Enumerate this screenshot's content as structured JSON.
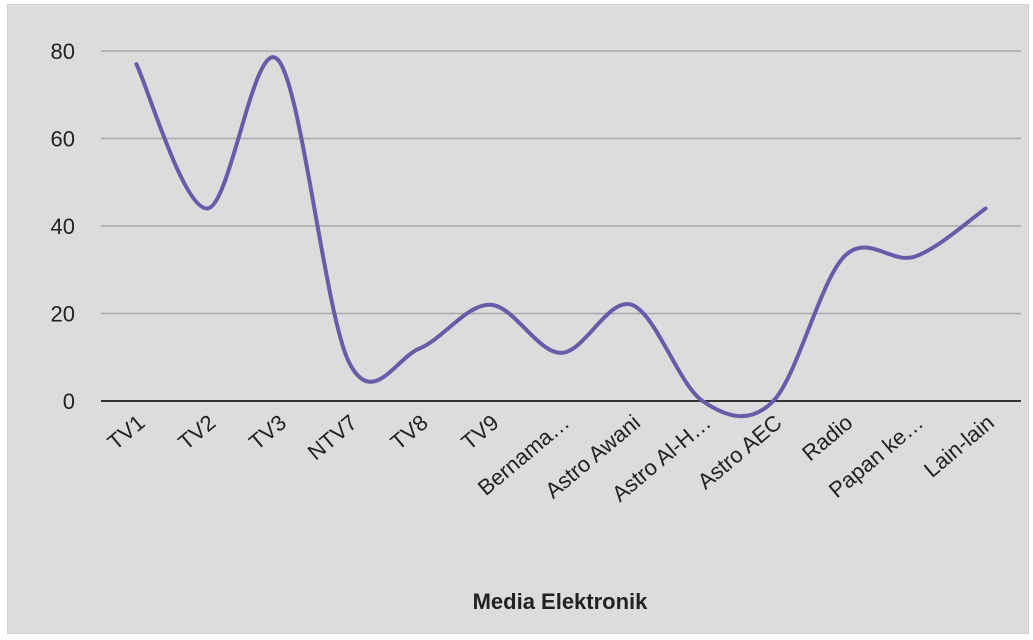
{
  "chart_data": {
    "type": "line",
    "xlabel": "Media Elektronik",
    "ylabel": "",
    "categories": [
      "TV1",
      "TV2",
      "TV3",
      "NTV7",
      "TV8",
      "TV9",
      "Bernama…",
      "Astro Awani",
      "Astro Al-H…",
      "Astro AEC",
      "Radio",
      "Papan ke…",
      "Lain-lain"
    ],
    "series": [
      {
        "values": [
          77,
          44,
          78,
          9,
          12,
          22,
          11,
          22,
          0,
          0,
          33,
          33,
          44
        ]
      }
    ],
    "ylim": [
      0,
      80
    ],
    "yticks": [
      0,
      20,
      40,
      60,
      80
    ],
    "grid": true,
    "smooth": true,
    "colors": {
      "line": "#6b5aa8",
      "grid": "#a8a8a8",
      "background": "#dcdcdc"
    }
  }
}
